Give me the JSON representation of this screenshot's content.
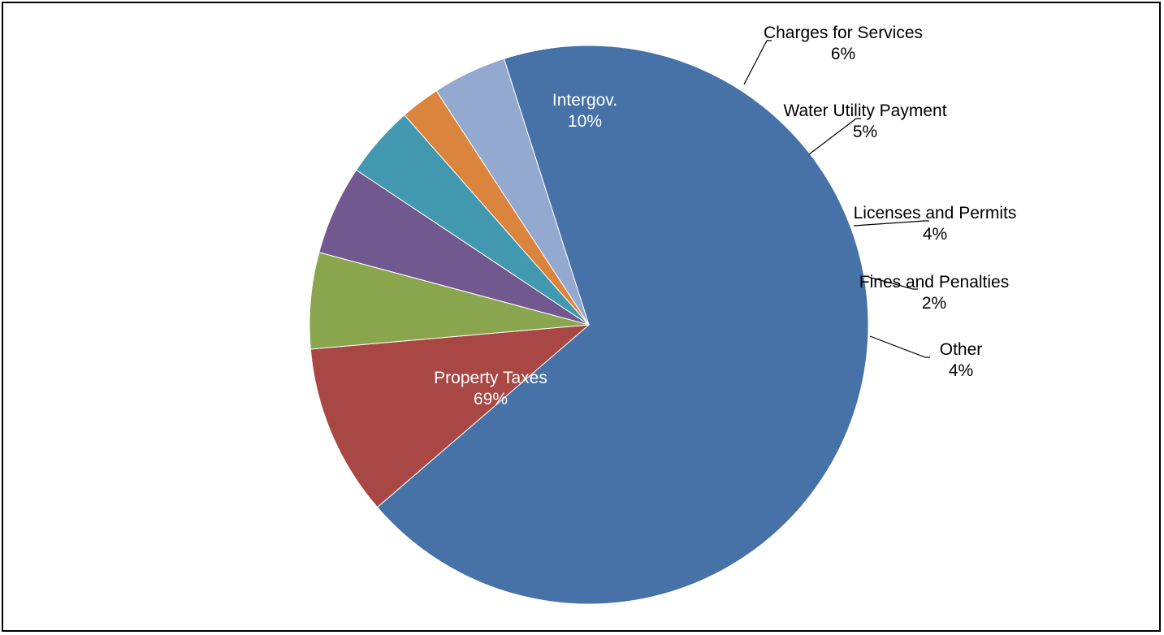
{
  "chart_data": {
    "type": "pie",
    "title": "",
    "slices": [
      {
        "label": "Property Taxes",
        "pct_label": "69%",
        "value": 69,
        "color": "#4672A8"
      },
      {
        "label": "Intergov.",
        "pct_label": "10%",
        "value": 10,
        "color": "#A84744"
      },
      {
        "label": "Charges for Services",
        "pct_label": "6%",
        "value": 5.6,
        "color": "#89A54D"
      },
      {
        "label": "Water Utility Payment",
        "pct_label": "5%",
        "value": 5.2,
        "color": "#71598F"
      },
      {
        "label": "Licenses and Permits",
        "pct_label": "4%",
        "value": 4.2,
        "color": "#4198AF"
      },
      {
        "label": "Fines and Penalties",
        "pct_label": "2%",
        "value": 2.3,
        "color": "#DB843D"
      },
      {
        "label": "Other",
        "pct_label": "4%",
        "value": 4.3,
        "color": "#93A9CF"
      }
    ]
  }
}
